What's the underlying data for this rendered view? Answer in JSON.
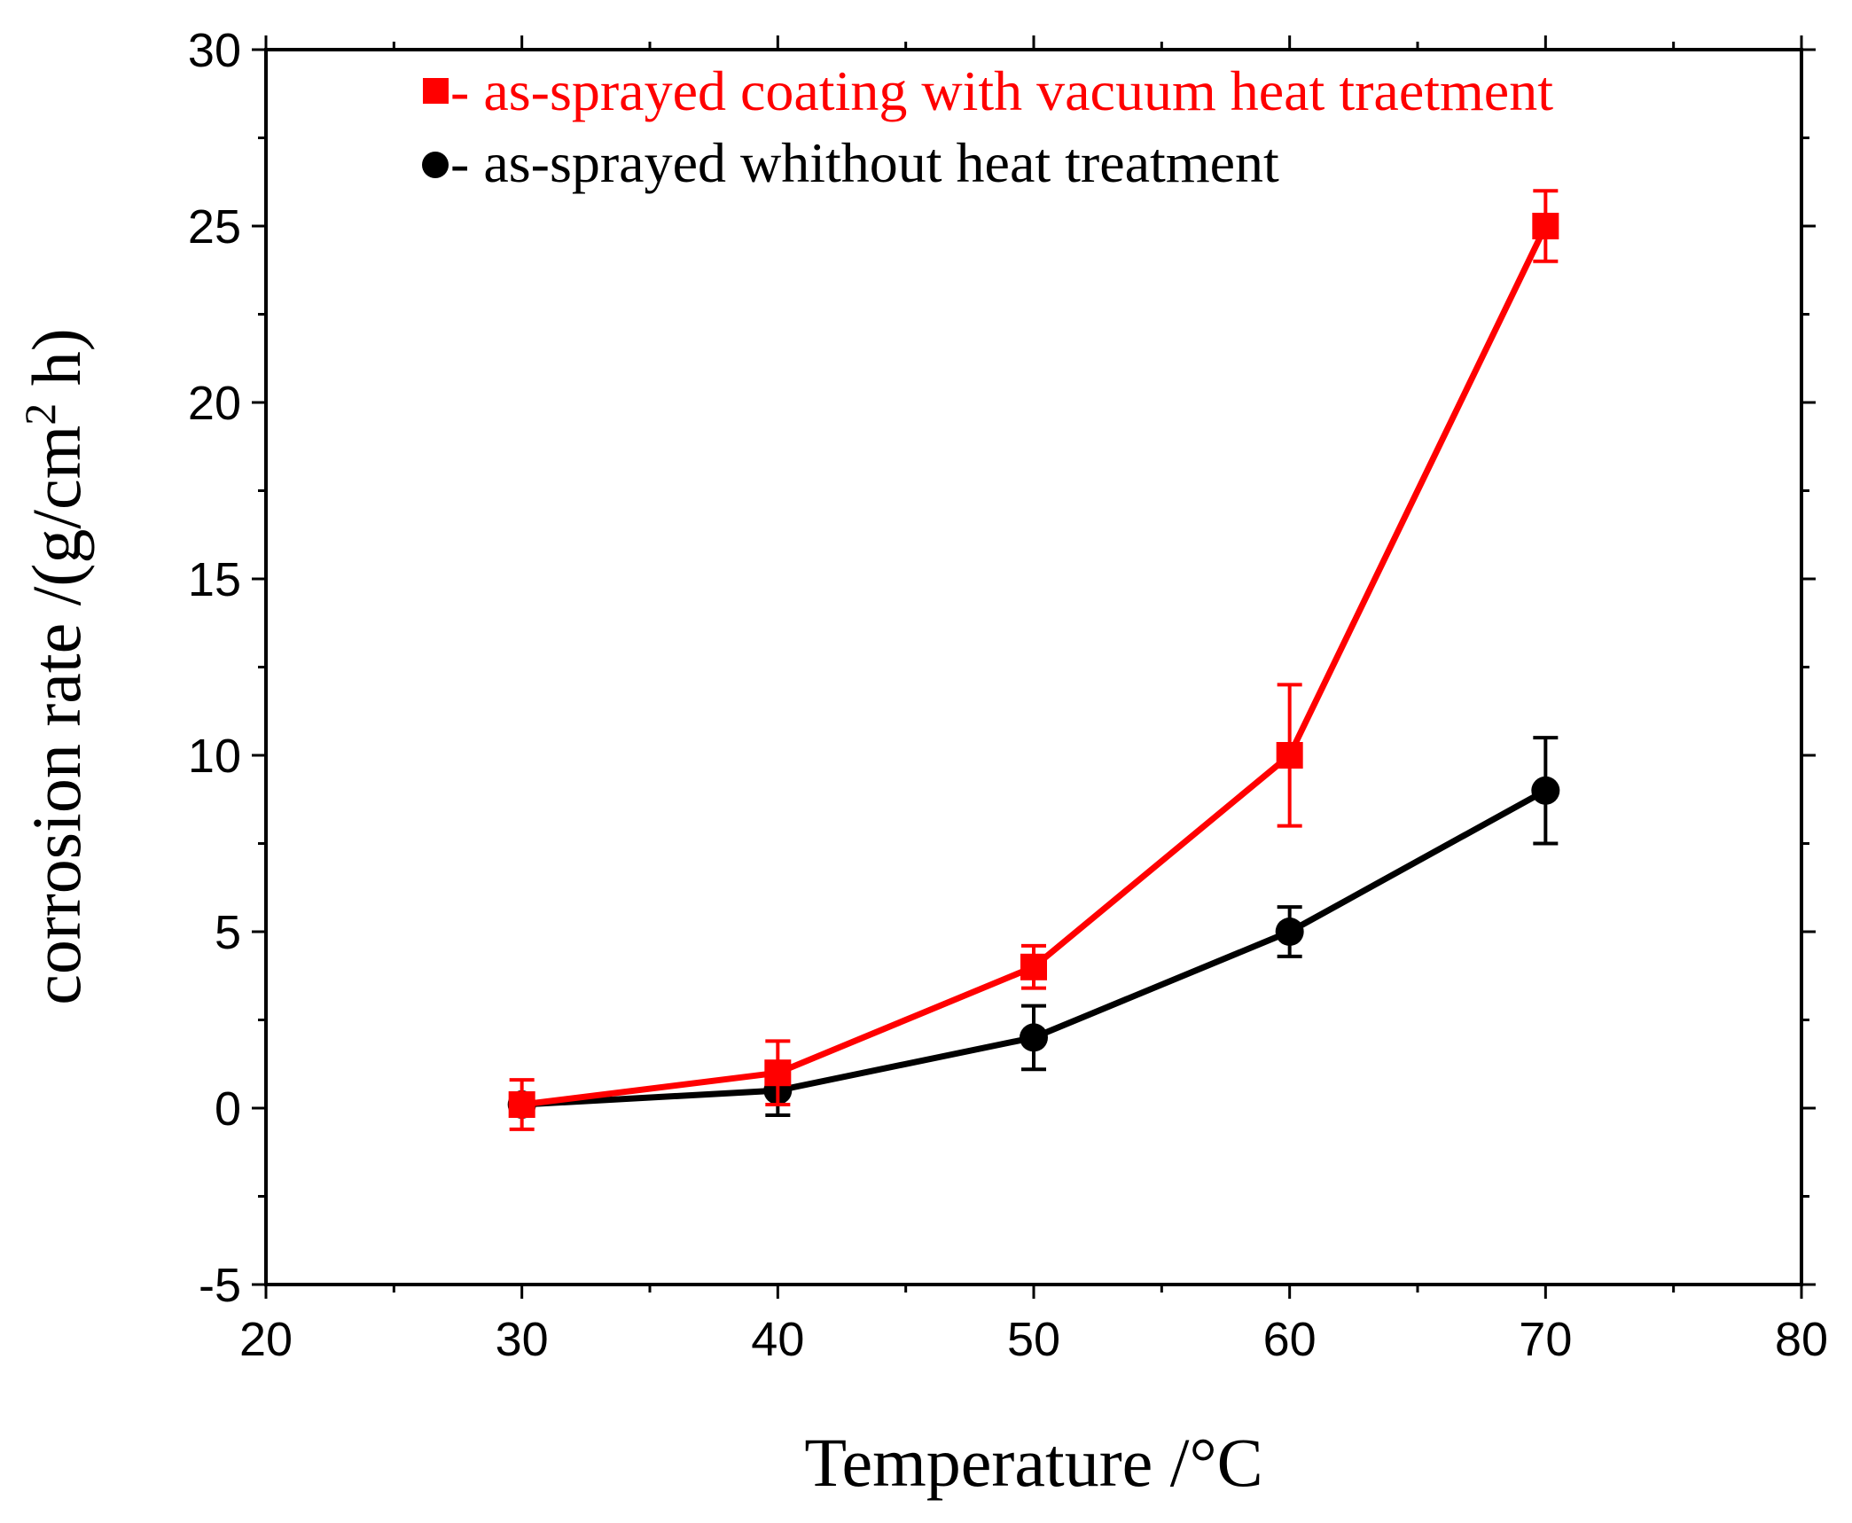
{
  "chart_data": {
    "type": "line",
    "xlabel": "Temperature /°C",
    "ylabel": {
      "main": "corrosion rate /(g/cm",
      "superscript": "2",
      "suffix": " h)"
    },
    "xlim": [
      20,
      80
    ],
    "ylim": [
      -5,
      30
    ],
    "xticks": [
      20,
      30,
      40,
      50,
      60,
      70,
      80
    ],
    "yticks": [
      -5,
      0,
      5,
      10,
      15,
      20,
      25,
      30
    ],
    "x_minor_step": 5,
    "y_minor_step": 2.5,
    "legend_position": "top-left",
    "series": [
      {
        "name": "- as-sprayed coating with vacuum heat traetment",
        "color": "#ff0000",
        "marker": "square",
        "x": [
          30,
          40,
          50,
          60,
          70
        ],
        "y": [
          0.1,
          1.0,
          4.0,
          10.0,
          25.0
        ],
        "error": [
          0.7,
          0.9,
          0.6,
          2.0,
          1.0
        ]
      },
      {
        "name": "- as-sprayed whithout heat treatment",
        "color": "#000000",
        "marker": "circle",
        "x": [
          30,
          40,
          50,
          60,
          70
        ],
        "y": [
          0.1,
          0.5,
          2.0,
          5.0,
          9.0
        ],
        "error": [
          0.2,
          0.7,
          0.9,
          0.7,
          1.5
        ]
      }
    ]
  }
}
